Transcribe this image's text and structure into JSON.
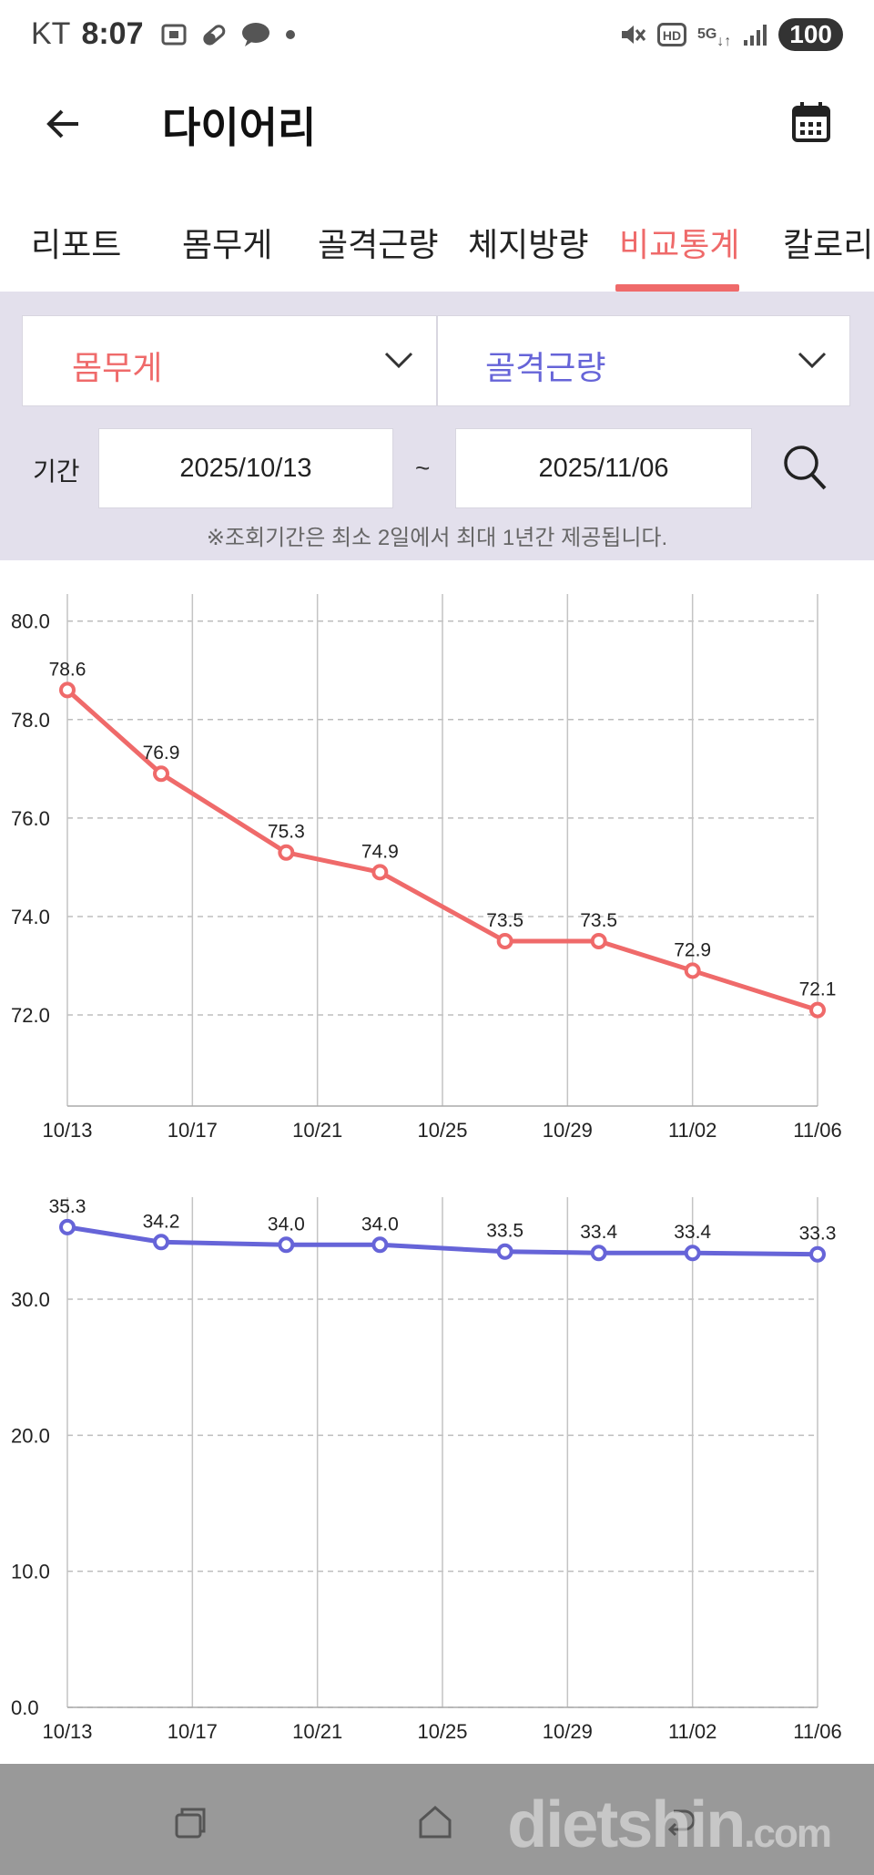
{
  "status_bar": {
    "carrier": "KT",
    "time": "8:07",
    "network": "5G",
    "hd": "HD",
    "battery": "100"
  },
  "header": {
    "title": "다이어리"
  },
  "tabs": [
    {
      "label": "리포트",
      "active": false
    },
    {
      "label": "몸무게",
      "active": false
    },
    {
      "label": "골격근량",
      "active": false
    },
    {
      "label": "체지방량",
      "active": false
    },
    {
      "label": "비교통계",
      "active": true
    },
    {
      "label": "칼로리",
      "active": false
    }
  ],
  "filters": {
    "metric_a": "몸무게",
    "metric_b": "골격근량",
    "period_label": "기간",
    "start_date": "2025/10/13",
    "separator": "~",
    "end_date": "2025/11/06",
    "notice": "※조회기간은 최소 2일에서 최대 1년간 제공됩니다."
  },
  "colors": {
    "accent_red": "#ef6a6a",
    "accent_blue": "#6664d8",
    "panel_bg": "#e3e0ec",
    "nav_bg": "#999999"
  },
  "chart_data": [
    {
      "type": "line",
      "x": [
        "10/13",
        "10/16",
        "10/20",
        "10/23",
        "10/27",
        "10/30",
        "11/02",
        "11/06"
      ],
      "x_ticks": [
        "10/13",
        "10/17",
        "10/21",
        "10/25",
        "10/29",
        "11/02",
        "11/06"
      ],
      "series": [
        {
          "values": [
            78.6,
            76.9,
            75.3,
            74.9,
            73.5,
            73.5,
            72.9,
            72.1
          ],
          "color": "#ef6a6a"
        }
      ],
      "y_ticks": [
        "72.0",
        "74.0",
        "76.0",
        "78.0",
        "80.0"
      ],
      "ylim": [
        70.15,
        80.55
      ],
      "grid": true,
      "data_labels": [
        "78.6",
        "76.9",
        "75.3",
        "74.9",
        "73.5",
        "73.5",
        "72.9",
        "72.1"
      ]
    },
    {
      "type": "line",
      "x": [
        "10/13",
        "10/16",
        "10/20",
        "10/23",
        "10/27",
        "10/30",
        "11/02",
        "11/06"
      ],
      "x_ticks": [
        "10/13",
        "10/17",
        "10/21",
        "10/25",
        "10/29",
        "11/02",
        "11/06"
      ],
      "series": [
        {
          "values": [
            35.3,
            34.2,
            34.0,
            34.0,
            33.5,
            33.4,
            33.4,
            33.3
          ],
          "color": "#6664d8"
        }
      ],
      "y_ticks": [
        "0.0",
        "10.0",
        "20.0",
        "30.0"
      ],
      "ylim": [
        0,
        37.5
      ],
      "grid": true,
      "data_labels": [
        "35.3",
        "34.2",
        "34.0",
        "34.0",
        "33.5",
        "33.4",
        "33.4",
        "33.3"
      ]
    }
  ],
  "watermark": {
    "text": "dietshin",
    "suffix": ".com"
  }
}
